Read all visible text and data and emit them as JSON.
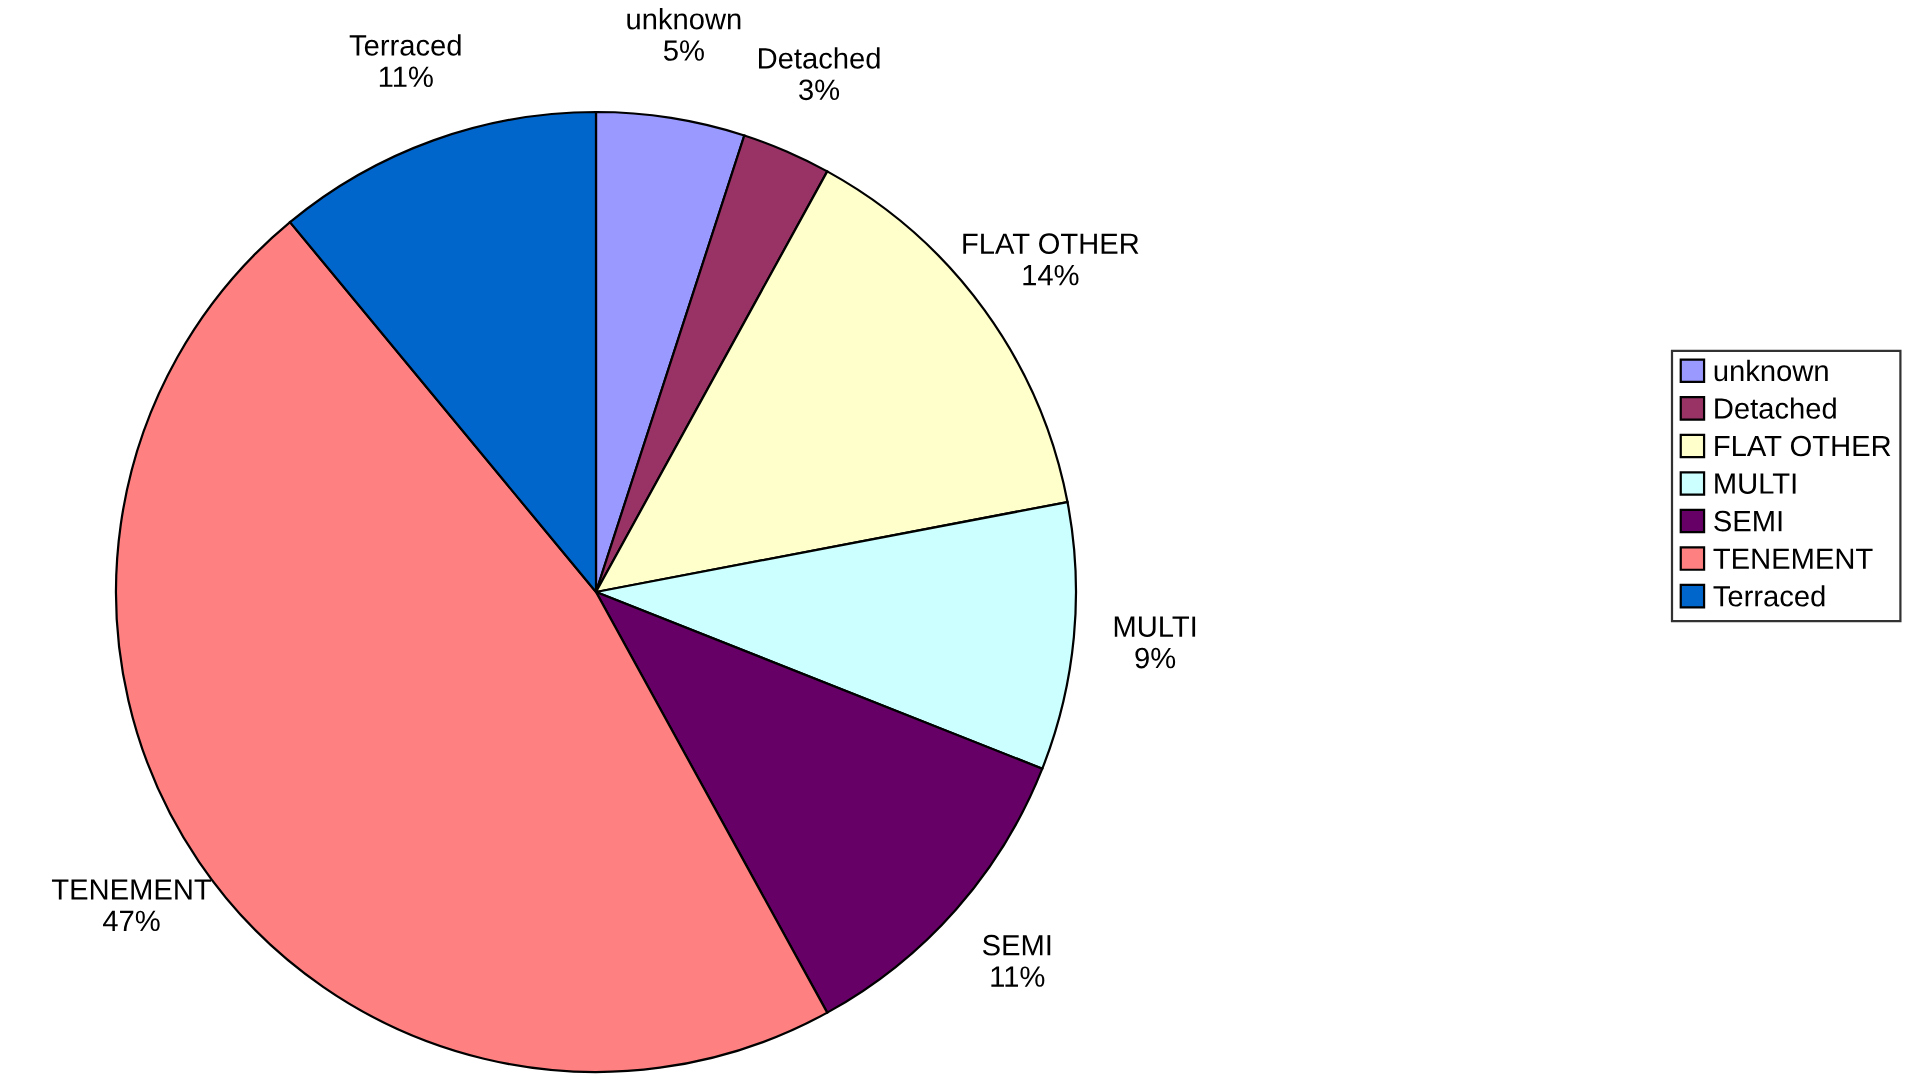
{
  "chart_data": {
    "type": "pie",
    "categories": [
      "unknown",
      "Detached",
      "FLAT OTHER",
      "MULTI",
      "SEMI",
      "TENEMENT",
      "Terraced"
    ],
    "values": [
      5,
      3,
      14,
      9,
      11,
      47,
      11
    ],
    "value_labels": [
      "5%",
      "3%",
      "14%",
      "9%",
      "11%",
      "47%",
      "11%"
    ],
    "colors": [
      "#9999ff",
      "#993366",
      "#ffffcc",
      "#ccffff",
      "#660066",
      "#ff8080",
      "#0066cc"
    ],
    "legend": "right"
  }
}
